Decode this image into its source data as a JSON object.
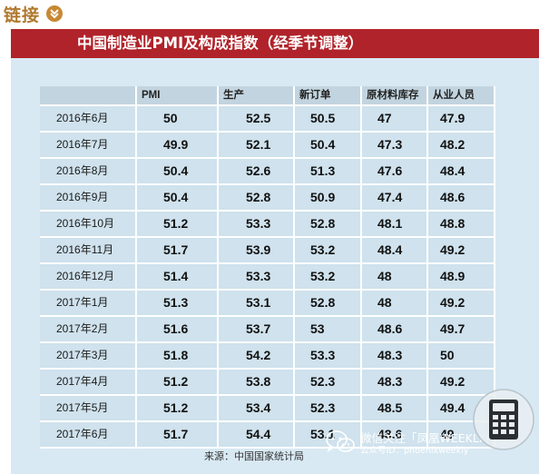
{
  "header": {
    "link_title": "链接",
    "badge_icon": "chevron-down-icon",
    "banner_title": "中国制造业PMI及构成指数（经季节调整）"
  },
  "colors": {
    "accent_red": "#b0232a",
    "link_gold": "#b0782e",
    "panel_blue": "#d8e9f3"
  },
  "table": {
    "columns": [
      "",
      "PMI",
      "生产",
      "新订单",
      "原材料库存",
      "从业人员"
    ],
    "rows": [
      [
        "2016年6月",
        "50",
        "52.5",
        "50.5",
        "47",
        "47.9"
      ],
      [
        "2016年7月",
        "49.9",
        "52.1",
        "50.4",
        "47.3",
        "48.2"
      ],
      [
        "2016年8月",
        "50.4",
        "52.6",
        "51.3",
        "47.6",
        "48.4"
      ],
      [
        "2016年9月",
        "50.4",
        "52.8",
        "50.9",
        "47.4",
        "48.6"
      ],
      [
        "2016年10月",
        "51.2",
        "53.3",
        "52.8",
        "48.1",
        "48.8"
      ],
      [
        "2016年11月",
        "51.7",
        "53.9",
        "53.2",
        "48.4",
        "49.2"
      ],
      [
        "2016年12月",
        "51.4",
        "53.3",
        "53.2",
        "48",
        "48.9"
      ],
      [
        "2017年1月",
        "51.3",
        "53.1",
        "52.8",
        "48",
        "49.2"
      ],
      [
        "2017年2月",
        "51.6",
        "53.7",
        "53",
        "48.6",
        "49.7"
      ],
      [
        "2017年3月",
        "51.8",
        "54.2",
        "53.3",
        "48.3",
        "50"
      ],
      [
        "2017年4月",
        "51.2",
        "53.8",
        "52.3",
        "48.3",
        "49.2"
      ],
      [
        "2017年5月",
        "51.2",
        "53.4",
        "52.3",
        "48.5",
        "49.4"
      ],
      [
        "2017年6月",
        "51.7",
        "54.4",
        "53.1",
        "48.6",
        "49"
      ]
    ]
  },
  "source": "来源：中国国家统计局",
  "watermark": {
    "icon": "wechat-icon",
    "line1": "微信关注「凤凰WEEKLY」",
    "line2": "公众号ID：phoenixweekly",
    "overlay_icon": "calculator-icon"
  }
}
